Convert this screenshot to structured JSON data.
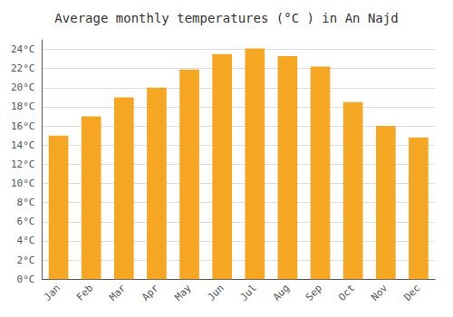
{
  "chart_data": {
    "type": "bar",
    "title": "Average monthly temperatures (°C ) in An Najd",
    "categories": [
      "Jan",
      "Feb",
      "Mar",
      "Apr",
      "May",
      "Jun",
      "Jul",
      "Aug",
      "Sep",
      "Oct",
      "Nov",
      "Dec"
    ],
    "values": [
      15.0,
      17.0,
      19.0,
      20.0,
      21.9,
      23.5,
      24.1,
      23.3,
      22.2,
      18.5,
      16.0,
      14.8
    ],
    "color": "#F5A623",
    "ylim": [
      0,
      25
    ],
    "yticks": [
      {
        "value": 0,
        "label": "0°C"
      },
      {
        "value": 2,
        "label": "2°C"
      },
      {
        "value": 4,
        "label": "4°C"
      },
      {
        "value": 6,
        "label": "6°C"
      },
      {
        "value": 8,
        "label": "8°C"
      },
      {
        "value": 10,
        "label": "10°C"
      },
      {
        "value": 12,
        "label": "12°C"
      },
      {
        "value": 14,
        "label": "14°C"
      },
      {
        "value": 16,
        "label": "16°C"
      },
      {
        "value": 18,
        "label": "18°C"
      },
      {
        "value": 20,
        "label": "20°C"
      },
      {
        "value": 22,
        "label": "22°C"
      },
      {
        "value": 24,
        "label": "24°C"
      }
    ],
    "grid": true
  }
}
